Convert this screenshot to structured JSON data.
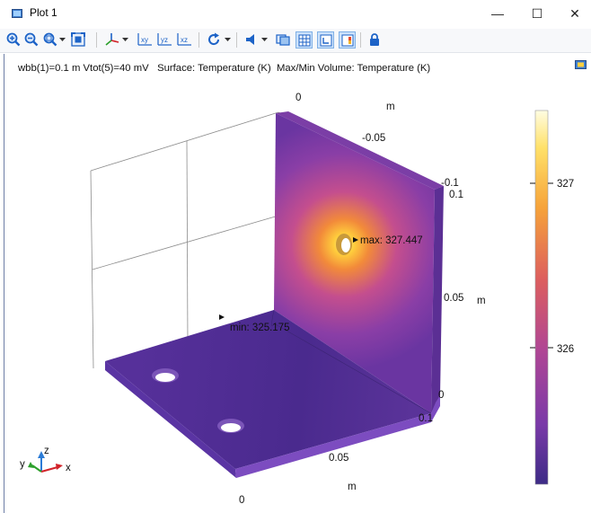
{
  "window": {
    "title": "Plot 1",
    "minimize": "—",
    "maximize": "☐",
    "close": "✕"
  },
  "toolbar": {
    "buttons": [
      "zoom-in",
      "zoom-out",
      "zoom-box",
      "zoom-extents",
      "axes-orientation",
      "view-xy",
      "view-yz",
      "view-xz",
      "rotate",
      "light",
      "scene-light",
      "grid",
      "axis-orthonormal",
      "color-legend",
      "lock"
    ],
    "view_xy": "xy",
    "view_yz": "yz",
    "view_xz": "xz"
  },
  "plot": {
    "info_text": "wbb(1)=0.1 m Vtot(5)=40 mV   Surface: Temperature (K)  Max/Min Volume: Temperature (K)",
    "max_label": "max: 327.447",
    "min_label": "min: 325.175",
    "axis_ticks": {
      "y_top": [
        "0",
        "-0.05",
        "-0.1"
      ],
      "y_top_unit": "m",
      "z": [
        "0.1",
        "0.05",
        "0"
      ],
      "z_unit": "m",
      "x": [
        "0.1",
        "0.05",
        "0"
      ],
      "x_unit": "m"
    },
    "triad": {
      "x": "x",
      "y": "y",
      "z": "z"
    }
  },
  "colorbar": {
    "ticks": [
      "327",
      "326"
    ],
    "min": 325.175,
    "max": 327.447,
    "colormap": "thermal"
  },
  "colors": {
    "accent": "#1d63c7",
    "plate": "#6a3aa3",
    "hot": "#ffd14a"
  }
}
